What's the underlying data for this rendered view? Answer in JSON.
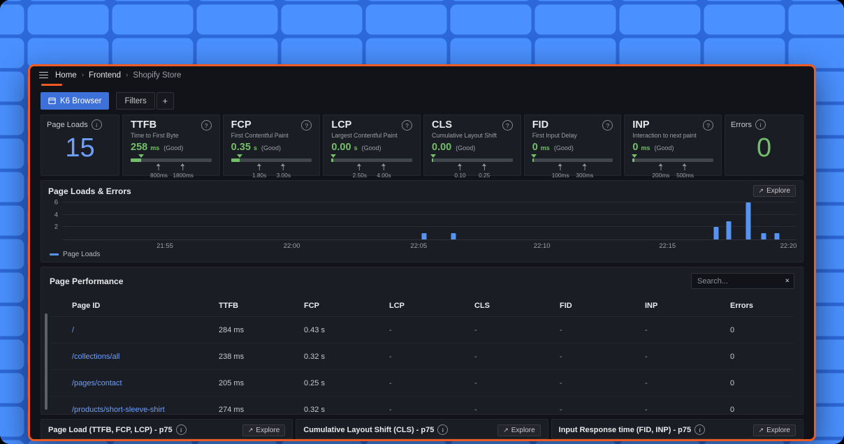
{
  "colors": {
    "desktop_tile": "#4a90ff",
    "desktop_gap": "#2d68d8",
    "window_border": "#ee5b22",
    "accent_blue": "#3d71d9",
    "value_blue": "#6e9fff",
    "value_green": "#73bf69",
    "chart_bar_blue": "#5794f2"
  },
  "breadcrumb": {
    "items": [
      "Home",
      "Frontend",
      "Shopify Store"
    ],
    "separator": "›"
  },
  "toolbar": {
    "k6_button_label": "K6 Browser",
    "filters_button_label": "Filters",
    "add_button_label": "+"
  },
  "metrics": {
    "page_loads": {
      "title": "Page Loads",
      "value": "15"
    },
    "errors": {
      "title": "Errors",
      "value": "0"
    },
    "gauges": [
      {
        "title": "TTFB",
        "subtitle": "Time to First Byte",
        "value": "258",
        "unit": "ms",
        "status": "(Good)",
        "fill_pct": 13,
        "markers": [
          {
            "label": "800ms",
            "pos": 35
          },
          {
            "label": "1800ms",
            "pos": 65
          }
        ]
      },
      {
        "title": "FCP",
        "subtitle": "First Contentful Paint",
        "value": "0.35",
        "unit": "s",
        "status": "(Good)",
        "fill_pct": 11,
        "markers": [
          {
            "label": "1.80s",
            "pos": 35
          },
          {
            "label": "3.00s",
            "pos": 65
          }
        ]
      },
      {
        "title": "LCP",
        "subtitle": "Largest Contentful Paint",
        "value": "0.00",
        "unit": "s",
        "status": "(Good)",
        "fill_pct": 2,
        "markers": [
          {
            "label": "2.50s",
            "pos": 35
          },
          {
            "label": "4.00s",
            "pos": 65
          }
        ]
      },
      {
        "title": "CLS",
        "subtitle": "Cumulative Layout Shift",
        "value": "0.00",
        "unit": "",
        "status": "(Good)",
        "fill_pct": 2,
        "markers": [
          {
            "label": "0.10",
            "pos": 35
          },
          {
            "label": "0.25",
            "pos": 65
          }
        ]
      },
      {
        "title": "FID",
        "subtitle": "First Input Delay",
        "value": "0",
        "unit": "ms",
        "status": "(Good)",
        "fill_pct": 2,
        "markers": [
          {
            "label": "100ms",
            "pos": 35
          },
          {
            "label": "300ms",
            "pos": 65
          }
        ]
      },
      {
        "title": "INP",
        "subtitle": "Interaction to next paint",
        "value": "0",
        "unit": "ms",
        "status": "(Good)",
        "fill_pct": 2,
        "markers": [
          {
            "label": "200ms",
            "pos": 35
          },
          {
            "label": "500ms",
            "pos": 65
          }
        ]
      }
    ]
  },
  "timeseries_panel": {
    "title": "Page Loads & Errors",
    "explore_label": "Explore",
    "legend": "Page Loads"
  },
  "chart_data": {
    "type": "bar",
    "title": "Page Loads & Errors",
    "ylabel": "Page Loads",
    "ylim": [
      0,
      6.5
    ],
    "y_ticks": [
      2,
      4,
      6
    ],
    "x_ticks": [
      {
        "label": "21:55",
        "pos": 14
      },
      {
        "label": "22:00",
        "pos": 31.3
      },
      {
        "label": "22:05",
        "pos": 48.6
      },
      {
        "label": "22:10",
        "pos": 65.4
      },
      {
        "label": "22:15",
        "pos": 82.5
      },
      {
        "label": "22:20",
        "pos": 99
      }
    ],
    "series": [
      {
        "name": "Page Loads",
        "color": "#5794f2",
        "points": [
          {
            "time": "22:05",
            "pos": 49.3,
            "v": 1
          },
          {
            "time": "22:06",
            "pos": 53.3,
            "v": 1
          },
          {
            "time": "22:17",
            "pos": 89.1,
            "v": 2
          },
          {
            "time": "22:17",
            "pos": 90.9,
            "v": 3
          },
          {
            "time": "22:18",
            "pos": 93.5,
            "v": 6
          },
          {
            "time": "22:19",
            "pos": 95.6,
            "v": 1
          },
          {
            "time": "22:19",
            "pos": 97.4,
            "v": 1
          }
        ]
      }
    ],
    "legend_position": "bottom-left",
    "grid": true
  },
  "table_panel": {
    "title": "Page Performance",
    "search_placeholder": "Search...",
    "clear_icon": "×",
    "columns": [
      "Page ID",
      "TTFB",
      "FCP",
      "LCP",
      "CLS",
      "FID",
      "INP",
      "Errors"
    ],
    "rows": [
      {
        "page_id": "/",
        "ttfb": "284 ms",
        "fcp": "0.43 s",
        "lcp": "-",
        "cls": "-",
        "fid": "-",
        "inp": "-",
        "errors": "0"
      },
      {
        "page_id": "/collections/all",
        "ttfb": "238 ms",
        "fcp": "0.32 s",
        "lcp": "-",
        "cls": "-",
        "fid": "-",
        "inp": "-",
        "errors": "0"
      },
      {
        "page_id": "/pages/contact",
        "ttfb": "205 ms",
        "fcp": "0.25 s",
        "lcp": "-",
        "cls": "-",
        "fid": "-",
        "inp": "-",
        "errors": "0"
      },
      {
        "page_id": "/products/short-sleeve-shirt",
        "ttfb": "274 ms",
        "fcp": "0.32 s",
        "lcp": "-",
        "cls": "-",
        "fid": "-",
        "inp": "-",
        "errors": "0"
      }
    ]
  },
  "bottom_panels": [
    {
      "title": "Page Load (TTFB, FCP, LCP) - p75",
      "explore_label": "Explore"
    },
    {
      "title": "Cumulative Layout Shift (CLS) - p75",
      "explore_label": "Explore"
    },
    {
      "title": "Input Response time (FID, INP) - p75",
      "explore_label": "Explore"
    }
  ]
}
